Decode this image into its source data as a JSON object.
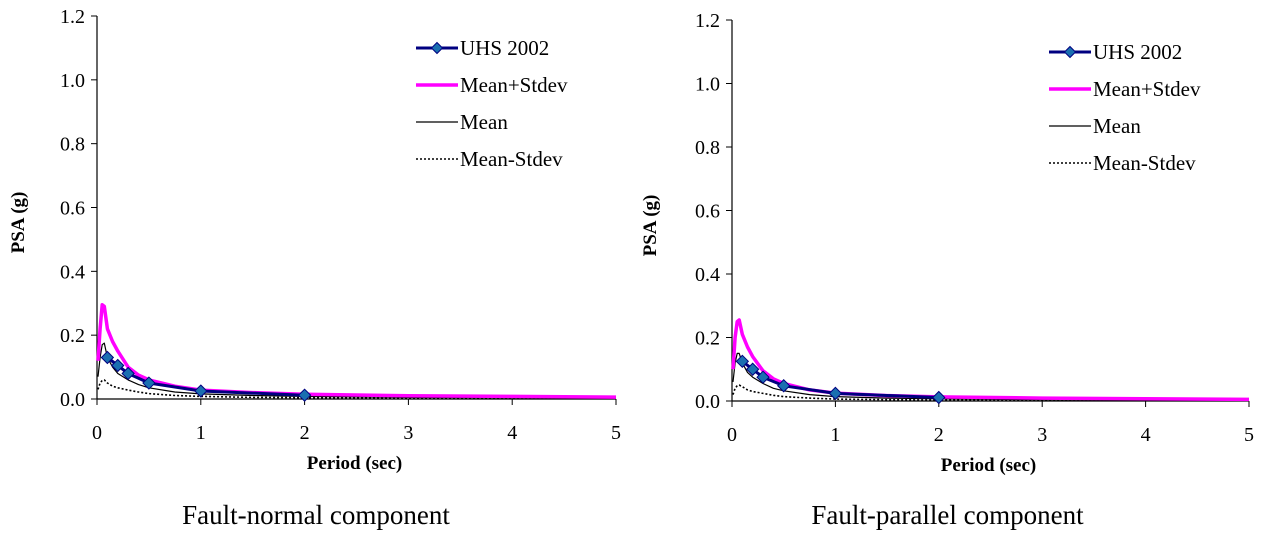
{
  "colors": {
    "uhs": "#000080",
    "uhs_marker": "#1a6fb0",
    "mean_plus": "#ff00ff",
    "mean": "#000000",
    "mean_minus": "#000000"
  },
  "chart_data": [
    {
      "type": "line",
      "caption": "Fault-normal component",
      "xlabel": "Period (sec)",
      "ylabel": "PSA (g)",
      "xlim": [
        0,
        5
      ],
      "ylim": [
        0,
        1.2
      ],
      "xticks": [
        "0",
        "1",
        "2",
        "3",
        "4",
        "5"
      ],
      "yticks": [
        "0.0",
        "0.2",
        "0.4",
        "0.6",
        "0.8",
        "1.0",
        "1.2"
      ],
      "legend_position": "top-right",
      "legend": [
        "UHS 2002",
        "Mean+Stdev",
        "Mean",
        "Mean-Stdev"
      ],
      "series": [
        {
          "name": "UHS 2002",
          "style": "uhs",
          "x": [
            0.1,
            0.2,
            0.3,
            0.5,
            1.0,
            2.0
          ],
          "y": [
            0.13,
            0.105,
            0.08,
            0.05,
            0.025,
            0.012
          ]
        },
        {
          "name": "Mean+Stdev",
          "style": "mean_plus",
          "x": [
            0.01,
            0.03,
            0.05,
            0.07,
            0.1,
            0.15,
            0.2,
            0.3,
            0.4,
            0.5,
            0.75,
            1.0,
            1.5,
            2.0,
            3.0,
            4.0,
            5.0
          ],
          "y": [
            0.12,
            0.22,
            0.295,
            0.29,
            0.22,
            0.18,
            0.15,
            0.1,
            0.075,
            0.06,
            0.04,
            0.028,
            0.02,
            0.015,
            0.01,
            0.008,
            0.006
          ]
        },
        {
          "name": "Mean",
          "style": "mean",
          "x": [
            0.01,
            0.03,
            0.05,
            0.07,
            0.1,
            0.15,
            0.2,
            0.3,
            0.4,
            0.5,
            0.75,
            1.0,
            1.5,
            2.0,
            3.0,
            4.0,
            5.0
          ],
          "y": [
            0.07,
            0.13,
            0.17,
            0.175,
            0.13,
            0.1,
            0.08,
            0.06,
            0.045,
            0.035,
            0.022,
            0.016,
            0.011,
            0.008,
            0.005,
            0.004,
            0.003
          ]
        },
        {
          "name": "Mean-Stdev",
          "style": "mean_minus",
          "x": [
            0.01,
            0.03,
            0.05,
            0.07,
            0.1,
            0.15,
            0.2,
            0.3,
            0.4,
            0.5,
            0.75,
            1.0,
            1.5,
            2.0,
            3.0,
            4.0,
            5.0
          ],
          "y": [
            0.03,
            0.05,
            0.058,
            0.06,
            0.05,
            0.04,
            0.035,
            0.028,
            0.022,
            0.017,
            0.011,
            0.008,
            0.005,
            0.004,
            0.003,
            0.002,
            0.002
          ]
        }
      ]
    },
    {
      "type": "line",
      "caption": "Fault-parallel component",
      "xlabel": "Period (sec)",
      "ylabel": "PSA (g)",
      "xlim": [
        0,
        5
      ],
      "ylim": [
        0,
        1.2
      ],
      "xticks": [
        "0",
        "1",
        "2",
        "3",
        "4",
        "5"
      ],
      "yticks": [
        "0.0",
        "0.2",
        "0.4",
        "0.6",
        "0.8",
        "1.0",
        "1.2"
      ],
      "legend_position": "top-right",
      "legend": [
        "UHS 2002",
        "Mean+Stdev",
        "Mean",
        "Mean-Stdev"
      ],
      "series": [
        {
          "name": "UHS 2002",
          "style": "uhs",
          "x": [
            0.1,
            0.2,
            0.3,
            0.5,
            1.0,
            2.0
          ],
          "y": [
            0.125,
            0.1,
            0.075,
            0.048,
            0.024,
            0.011
          ]
        },
        {
          "name": "Mean+Stdev",
          "style": "mean_plus",
          "x": [
            0.01,
            0.03,
            0.05,
            0.07,
            0.1,
            0.15,
            0.2,
            0.3,
            0.4,
            0.5,
            0.75,
            1.0,
            1.5,
            2.0,
            3.0,
            4.0,
            5.0
          ],
          "y": [
            0.1,
            0.2,
            0.25,
            0.255,
            0.21,
            0.17,
            0.14,
            0.095,
            0.07,
            0.055,
            0.035,
            0.025,
            0.017,
            0.013,
            0.009,
            0.007,
            0.005
          ]
        },
        {
          "name": "Mean",
          "style": "mean",
          "x": [
            0.01,
            0.03,
            0.05,
            0.07,
            0.1,
            0.15,
            0.2,
            0.3,
            0.4,
            0.5,
            0.75,
            1.0,
            1.5,
            2.0,
            3.0,
            4.0,
            5.0
          ],
          "y": [
            0.06,
            0.12,
            0.15,
            0.15,
            0.12,
            0.09,
            0.075,
            0.055,
            0.04,
            0.032,
            0.02,
            0.014,
            0.009,
            0.007,
            0.004,
            0.003,
            0.002
          ]
        },
        {
          "name": "Mean-Stdev",
          "style": "mean_minus",
          "x": [
            0.01,
            0.03,
            0.05,
            0.07,
            0.1,
            0.15,
            0.2,
            0.3,
            0.4,
            0.5,
            0.75,
            1.0,
            1.5,
            2.0,
            3.0,
            4.0,
            5.0
          ],
          "y": [
            0.02,
            0.04,
            0.048,
            0.05,
            0.045,
            0.035,
            0.03,
            0.024,
            0.018,
            0.014,
            0.009,
            0.006,
            0.004,
            0.003,
            0.002,
            0.002,
            0.001
          ]
        }
      ]
    }
  ]
}
